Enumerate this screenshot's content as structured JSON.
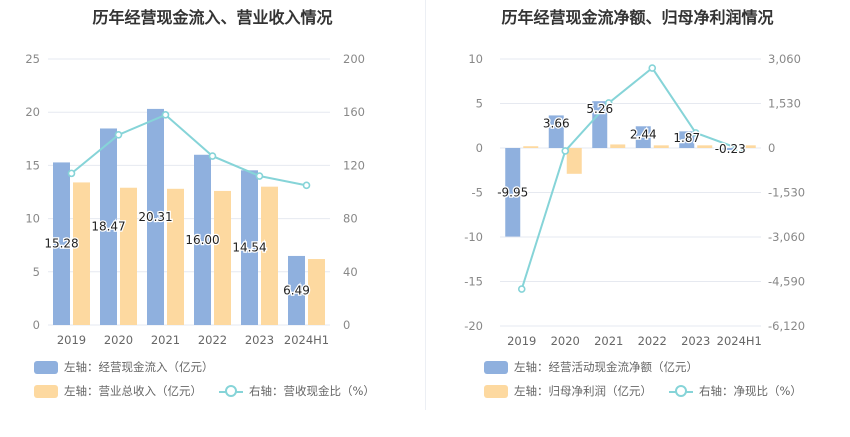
{
  "chart_data": [
    {
      "type": "bar+line",
      "title": "历年经营现金流入、营业收入情况",
      "categories": [
        "2019",
        "2020",
        "2021",
        "2022",
        "2023",
        "2024H1"
      ],
      "left_axis": {
        "ticks": [
          "0",
          "5",
          "10",
          "15",
          "20",
          "25"
        ],
        "ylim": [
          0,
          25
        ]
      },
      "right_axis": {
        "ticks": [
          "0",
          "40",
          "80",
          "120",
          "160",
          "200"
        ],
        "ylim": [
          0,
          200
        ]
      },
      "series": [
        {
          "name": "左轴：经营现金流入（亿元）",
          "kind": "bar",
          "axis": "left",
          "color": "#8fb0de",
          "values": [
            15.28,
            18.47,
            20.31,
            16.0,
            14.54,
            6.49
          ],
          "labels": [
            "15.28",
            "18.47",
            "20.31",
            "16.00",
            "14.54",
            "6.49"
          ]
        },
        {
          "name": "左轴：营业总收入（亿元）",
          "kind": "bar",
          "axis": "left",
          "color": "#fdd9a0",
          "values": [
            13.4,
            12.9,
            12.8,
            12.6,
            13.0,
            6.2
          ]
        },
        {
          "name": "右轴：营收现金比（%）",
          "kind": "line",
          "axis": "right",
          "color": "#86d4d8",
          "values": [
            114,
            143,
            158,
            127,
            112,
            105
          ]
        }
      ],
      "legend_position": "bottom",
      "grid": true
    },
    {
      "type": "bar+line",
      "title": "历年经营现金流净额、归母净利润情况",
      "categories": [
        "2019",
        "2020",
        "2021",
        "2022",
        "2023",
        "2024H1"
      ],
      "left_axis": {
        "ticks": [
          "-20",
          "-15",
          "-10",
          "-5",
          "0",
          "5",
          "10"
        ],
        "ylim": [
          -20,
          10
        ]
      },
      "right_axis": {
        "ticks": [
          "-6,120",
          "-4,590",
          "-3,060",
          "-1,530",
          "0",
          "1,530",
          "3,060"
        ],
        "ylim": [
          -6120,
          3060
        ]
      },
      "series": [
        {
          "name": "左轴：经营活动现金流净额（亿元）",
          "kind": "bar",
          "axis": "left",
          "color": "#8fb0de",
          "values": [
            -9.95,
            3.66,
            5.26,
            2.44,
            1.87,
            -0.23
          ],
          "labels": [
            "-9.95",
            "3.66",
            "5.26",
            "2.44",
            "1.87",
            "-0.23"
          ]
        },
        {
          "name": "左轴：归母净利润（亿元）",
          "kind": "bar",
          "axis": "left",
          "color": "#fdd9a0",
          "values": [
            0.2,
            -2.9,
            0.4,
            0.3,
            0.3,
            0.3
          ]
        },
        {
          "name": "右轴：净现比（%）",
          "kind": "line",
          "axis": "right",
          "color": "#86d4d8",
          "values": [
            -4850,
            -100,
            1550,
            2750,
            520,
            -30
          ]
        }
      ],
      "legend_position": "bottom",
      "grid": true
    }
  ]
}
